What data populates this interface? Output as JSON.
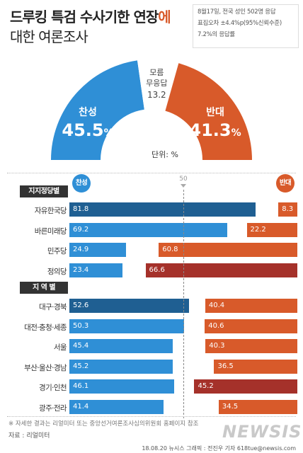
{
  "header": {
    "title_line1_main": "드루킹 특검 수사기한 연장",
    "title_line1_suffix": "에",
    "title_line2": "대한 여론조사"
  },
  "notes": [
    "8월17일, 전국 성인 502명 응답",
    "표집오차 ±4.4%p(95%신뢰수준)",
    "7.2%의 응답률"
  ],
  "colors": {
    "favor": "#2f8fd6",
    "favor_dark": "#1f5f92",
    "oppose": "#d85a2a",
    "oppose_dark": "#a5312a",
    "neutral": "#ffffff"
  },
  "chart_data": [
    {
      "type": "pie",
      "style": "semi-donut",
      "slices": [
        {
          "label": "찬성",
          "value": 45.5,
          "display": "45.5",
          "unit": "%"
        },
        {
          "label": "모름 무응답",
          "label_lines": [
            "모름",
            "무응답"
          ],
          "value": 13.2,
          "display": "13.2"
        },
        {
          "label": "반대",
          "value": 41.3,
          "display": "41.3",
          "unit": "%"
        }
      ],
      "unit_label": "단위: %"
    },
    {
      "type": "bar",
      "stacked": true,
      "orientation": "horizontal",
      "legend": {
        "favor": "찬성",
        "oppose": "반대"
      },
      "midline": 50,
      "sections": [
        {
          "title": "지지정당별",
          "rows": [
            {
              "label": "자유한국당",
              "favor": 81.8,
              "oppose": 8.3,
              "favor_dark": true,
              "oppose_dark": false
            },
            {
              "label": "바른미래당",
              "favor": 69.2,
              "oppose": 22.2,
              "favor_dark": false,
              "oppose_dark": false
            },
            {
              "label": "민주당",
              "favor": 24.9,
              "oppose": 60.8,
              "favor_dark": false,
              "oppose_dark": false
            },
            {
              "label": "정의당",
              "favor": 23.4,
              "oppose": 66.6,
              "favor_dark": false,
              "oppose_dark": true
            }
          ]
        },
        {
          "title": "지 역 별",
          "rows": [
            {
              "label": "대구·경북",
              "favor": 52.6,
              "oppose": 40.4,
              "favor_dark": true,
              "oppose_dark": false
            },
            {
              "label": "대전·충청·세종",
              "favor": 50.3,
              "oppose": 40.6,
              "favor_dark": false,
              "oppose_dark": false
            },
            {
              "label": "서울",
              "favor": 45.4,
              "oppose": 40.3,
              "favor_dark": false,
              "oppose_dark": false
            },
            {
              "label": "부산·울산·경남",
              "favor": 45.2,
              "oppose": 36.5,
              "favor_dark": false,
              "oppose_dark": false
            },
            {
              "label": "경기·인천",
              "favor": 46.1,
              "oppose": 45.2,
              "favor_dark": false,
              "oppose_dark": true
            },
            {
              "label": "광주·전라",
              "favor": 41.4,
              "oppose": 34.5,
              "favor_dark": false,
              "oppose_dark": false
            }
          ]
        }
      ]
    }
  ],
  "footer": {
    "footnote": "※ 자세한 결과는 리얼미터 또는 중앙선거여론조사심의위원회 홈페이지 참조",
    "source": "자료 : 리얼미터",
    "credit": "18.08.20 뉴시스 그래픽 : 전진우 기자 618tue@newsis.com",
    "logo_text": "NEWSIS"
  }
}
